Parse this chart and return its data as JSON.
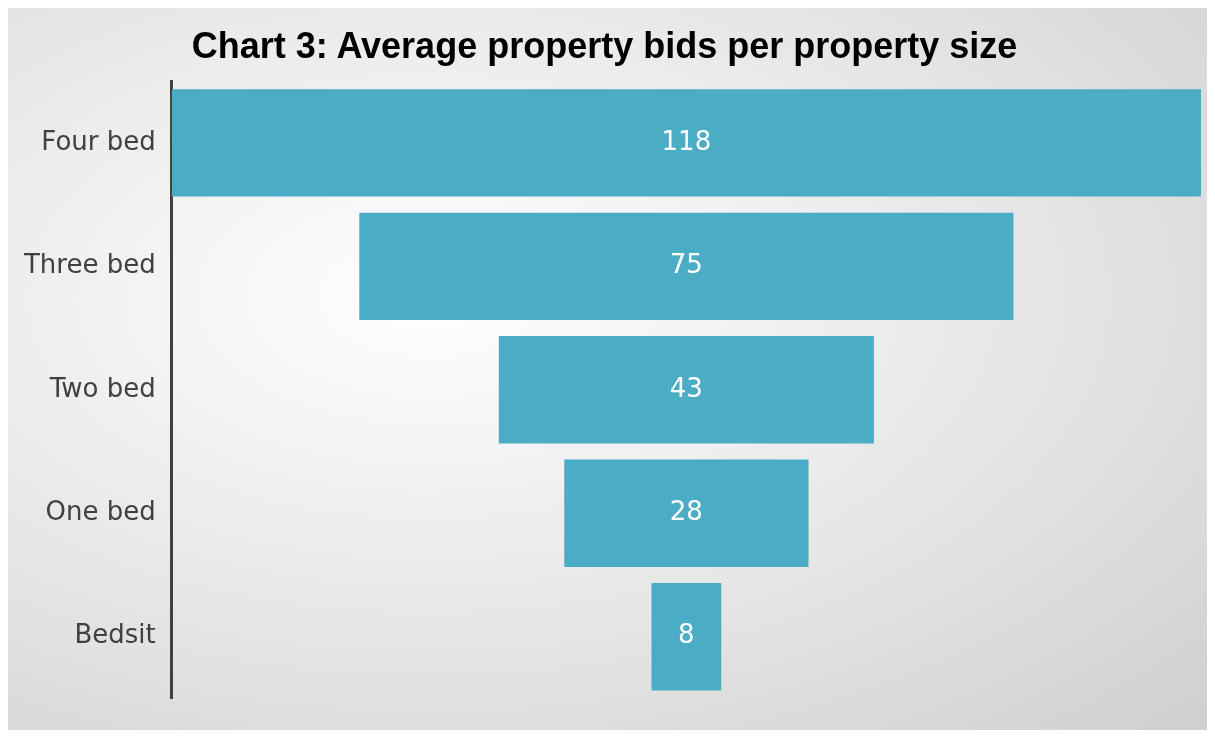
{
  "chart_data": {
    "type": "other",
    "title": "Chart 3: Average property bids per property size",
    "categories": [
      "Four bed",
      "Three bed",
      "Two bed",
      "One bed",
      "Bedsit"
    ],
    "values": [
      118,
      75,
      43,
      28,
      8
    ],
    "color": "#4bacc6",
    "data_labels": true
  }
}
